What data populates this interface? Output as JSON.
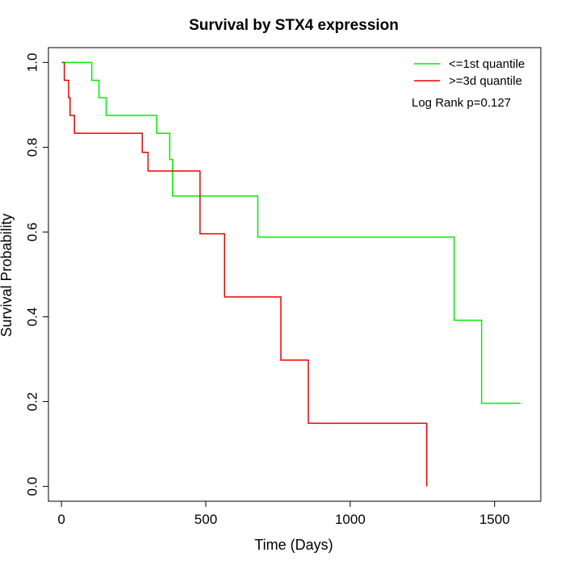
{
  "chart_data": {
    "type": "line",
    "title": "Survival by STX4 expression",
    "xlabel": "Time (Days)",
    "ylabel": "Survival Probability",
    "xlim": [
      -45,
      1660
    ],
    "ylim": [
      -0.035,
      1.035
    ],
    "x_ticks": [
      0,
      500,
      1000,
      1500
    ],
    "y_ticks": [
      0.0,
      0.2,
      0.4,
      0.6,
      0.8,
      1.0
    ],
    "x_tick_labels": [
      "0",
      "500",
      "1000",
      "1500"
    ],
    "y_tick_labels": [
      "0.0",
      "0.2",
      "0.4",
      "0.6",
      "0.8",
      "1.0"
    ],
    "grid": false,
    "legend_position": "top-right",
    "annotation": "Log Rank p=0.127",
    "series": [
      {
        "name": "<=1st quantile",
        "color": "#00ee00",
        "step": true,
        "x": [
          0,
          105,
          130,
          155,
          330,
          375,
          385,
          680,
          1360,
          1455,
          1590
        ],
        "y": [
          1.0,
          0.958,
          0.917,
          0.875,
          0.833,
          0.771,
          0.685,
          0.588,
          0.392,
          0.196,
          0.196
        ]
      },
      {
        "name": ">=3d quantile",
        "color": "#ee0000",
        "step": true,
        "x": [
          5,
          10,
          25,
          30,
          45,
          280,
          300,
          480,
          565,
          760,
          855,
          1265,
          1265
        ],
        "y": [
          1.0,
          0.958,
          0.917,
          0.875,
          0.833,
          0.788,
          0.744,
          0.596,
          0.447,
          0.298,
          0.149,
          0.149,
          0.0
        ]
      }
    ]
  }
}
